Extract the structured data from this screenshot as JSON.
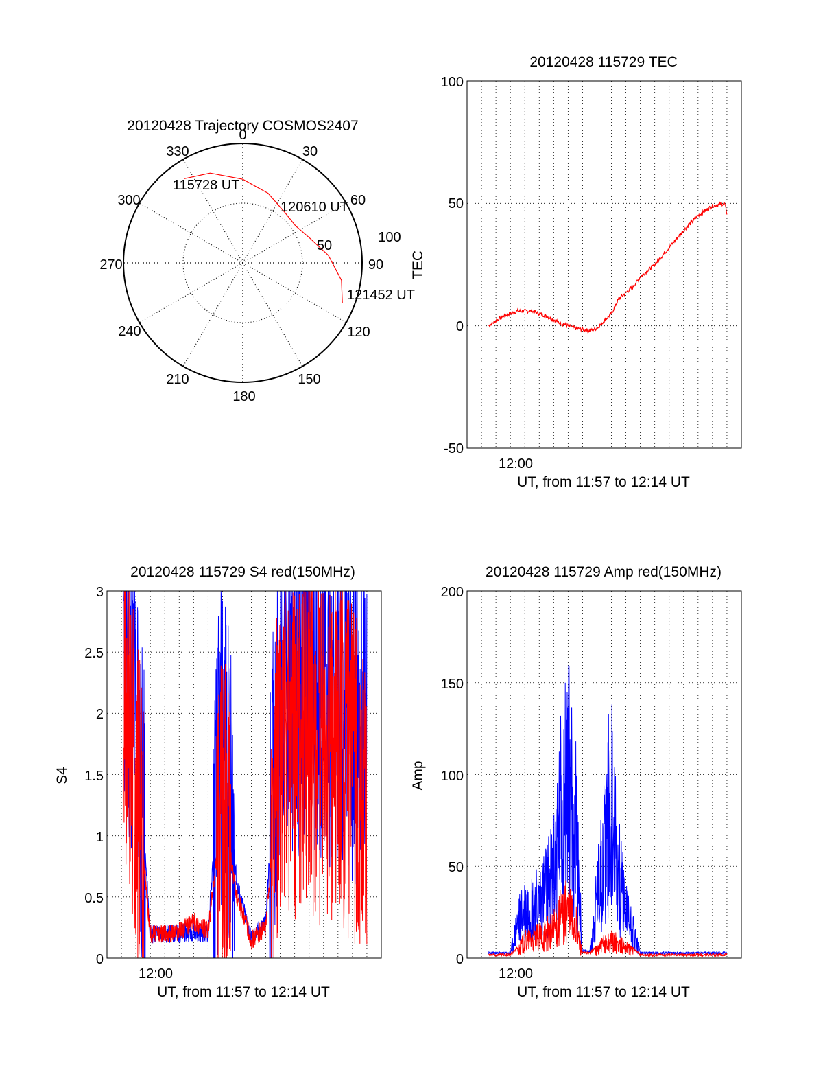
{
  "polar": {
    "title": "20120428 Trajectory COSMOS2407",
    "azimuth_labels": [
      "0",
      "30",
      "60",
      "90",
      "120",
      "150",
      "180",
      "210",
      "240",
      "270",
      "300",
      "330"
    ],
    "ring_labels": [
      "50",
      "100"
    ],
    "annotations": [
      "115728 UT",
      "120610 UT",
      "121452 UT"
    ]
  },
  "tec": {
    "title": "20120428 115729 TEC",
    "ylabel": "TEC",
    "xtick": "12:00",
    "xlabel": "UT, from 11:57 to 12:14 UT",
    "ytick_labels": [
      "-50",
      "0",
      "50",
      "100"
    ]
  },
  "s4": {
    "title": "20120428 115729 S4 red(150MHz)",
    "ylabel": "S4",
    "xtick": "12:00",
    "xlabel": "UT, from 11:57 to 12:14 UT",
    "ytick_labels": [
      "0",
      "0.5",
      "1",
      "1.5",
      "2",
      "2.5",
      "3"
    ]
  },
  "amp": {
    "title": "20120428 115729 Amp red(150MHz)",
    "ylabel": "Amp",
    "xtick": "12:00",
    "xlabel": "UT, from 11:57 to 12:14 UT",
    "ytick_labels": [
      "0",
      "50",
      "100",
      "150",
      "200"
    ]
  },
  "colors": {
    "red": "#ff0000",
    "blue": "#0000ff",
    "grid": "#000000"
  },
  "chart_data": [
    {
      "type": "scatter",
      "panel": "polar",
      "title": "20120428 Trajectory COSMOS2407",
      "series": [
        {
          "color": "#ff0000",
          "points": [
            [
              -35,
              86
            ],
            [
              -20,
              80
            ],
            [
              0,
              70
            ],
            [
              20,
              62
            ],
            [
              40,
              55
            ],
            [
              55,
              54
            ],
            [
              70,
              60
            ],
            [
              85,
              72
            ],
            [
              100,
              84
            ],
            [
              112,
              90
            ]
          ]
        }
      ],
      "azimuth_deg": [
        0,
        360
      ],
      "radius_range": [
        0,
        100
      ],
      "grid": true
    },
    {
      "type": "line",
      "panel": "tec",
      "title": "20120428 115729 TEC",
      "xlabel": "UT, from 11:57 to 12:14 UT",
      "ylabel": "TEC",
      "xlim": [
        "11:57",
        "12:14"
      ],
      "ylim": [
        -50,
        100
      ],
      "grid": true,
      "series": [
        {
          "color": "#ff0000",
          "x": [
            "11:57:30",
            "11:58:30",
            "11:59:30",
            "12:00:30",
            "12:01:30",
            "12:02:30",
            "12:03:30",
            "12:04:30",
            "12:05:00",
            "12:06:00",
            "12:06:30",
            "12:07:30",
            "12:08:00",
            "12:09:00",
            "12:10:00",
            "12:11:00",
            "12:12:00",
            "12:13:00",
            "12:13:50",
            "12:14:00"
          ],
          "values": [
            0,
            4,
            6,
            6,
            4,
            1,
            -1,
            -2,
            -1,
            5,
            11,
            16,
            20,
            25,
            32,
            39,
            45,
            49,
            50,
            46
          ]
        }
      ]
    },
    {
      "type": "line",
      "panel": "s4",
      "title": "20120428 115729 S4 red(150MHz)",
      "xlabel": "UT, from 11:57 to 12:14 UT",
      "ylabel": "S4",
      "xlim": [
        "11:57",
        "12:14"
      ],
      "ylim": [
        0,
        3
      ],
      "grid": true,
      "series": [
        {
          "color": "#0000ff",
          "x": [
            "11:57:10",
            "11:58:00",
            "11:59:00",
            "12:00:00",
            "12:01:00",
            "12:02:00",
            "12:03:00",
            "12:04:00",
            "12:05:00",
            "12:06:00",
            "12:07:00",
            "12:08:00",
            "12:09:00",
            "12:10:00",
            "12:11:00",
            "12:12:00",
            "12:13:00",
            "12:14:00"
          ],
          "values": [
            2.5,
            2.0,
            0.2,
            0.2,
            0.2,
            0.22,
            0.2,
            1.9,
            0.6,
            0.15,
            0.3,
            2.3,
            2.2,
            2.3,
            2.1,
            2.2,
            2.0,
            1.9
          ]
        },
        {
          "color": "#ff0000",
          "x": [
            "11:57:10",
            "11:58:00",
            "11:59:00",
            "12:00:00",
            "12:01:00",
            "12:02:00",
            "12:03:00",
            "12:04:00",
            "12:05:00",
            "12:06:00",
            "12:07:00",
            "12:08:00",
            "12:09:00",
            "12:10:00",
            "12:11:00",
            "12:12:00",
            "12:13:00",
            "12:14:00"
          ],
          "values": [
            2.2,
            1.5,
            0.2,
            0.2,
            0.22,
            0.3,
            0.22,
            1.2,
            0.5,
            0.15,
            0.25,
            1.8,
            1.7,
            1.8,
            1.6,
            1.7,
            1.5,
            1.2
          ]
        }
      ]
    },
    {
      "type": "line",
      "panel": "amp",
      "title": "20120428 115729 Amp red(150MHz)",
      "xlabel": "UT, from 11:57 to 12:14 UT",
      "ylabel": "Amp",
      "xlim": [
        "11:57",
        "12:14"
      ],
      "ylim": [
        0,
        200
      ],
      "grid": true,
      "series": [
        {
          "color": "#0000ff",
          "x": [
            "11:57:30",
            "11:59:00",
            "11:59:30",
            "12:00:00",
            "12:01:00",
            "12:02:00",
            "12:02:30",
            "12:03:00",
            "12:03:30",
            "12:04:00",
            "12:04:30",
            "12:05:30",
            "12:06:00",
            "12:06:30",
            "12:07:00",
            "12:07:30",
            "12:08:00",
            "12:10:00",
            "12:14:00"
          ],
          "values": [
            2,
            2,
            25,
            35,
            40,
            60,
            110,
            130,
            100,
            3,
            3,
            80,
            120,
            60,
            35,
            20,
            2,
            2,
            2
          ]
        },
        {
          "color": "#ff0000",
          "x": [
            "11:57:30",
            "11:59:00",
            "11:59:30",
            "12:00:00",
            "12:01:00",
            "12:02:00",
            "12:02:30",
            "12:03:00",
            "12:03:30",
            "12:04:00",
            "12:04:30",
            "12:05:30",
            "12:06:00",
            "12:06:30",
            "12:07:00",
            "12:07:30",
            "12:08:00",
            "12:10:00",
            "12:14:00"
          ],
          "values": [
            1,
            1,
            5,
            12,
            15,
            20,
            30,
            35,
            25,
            2,
            2,
            10,
            12,
            10,
            8,
            5,
            1,
            1,
            1
          ]
        }
      ]
    }
  ]
}
